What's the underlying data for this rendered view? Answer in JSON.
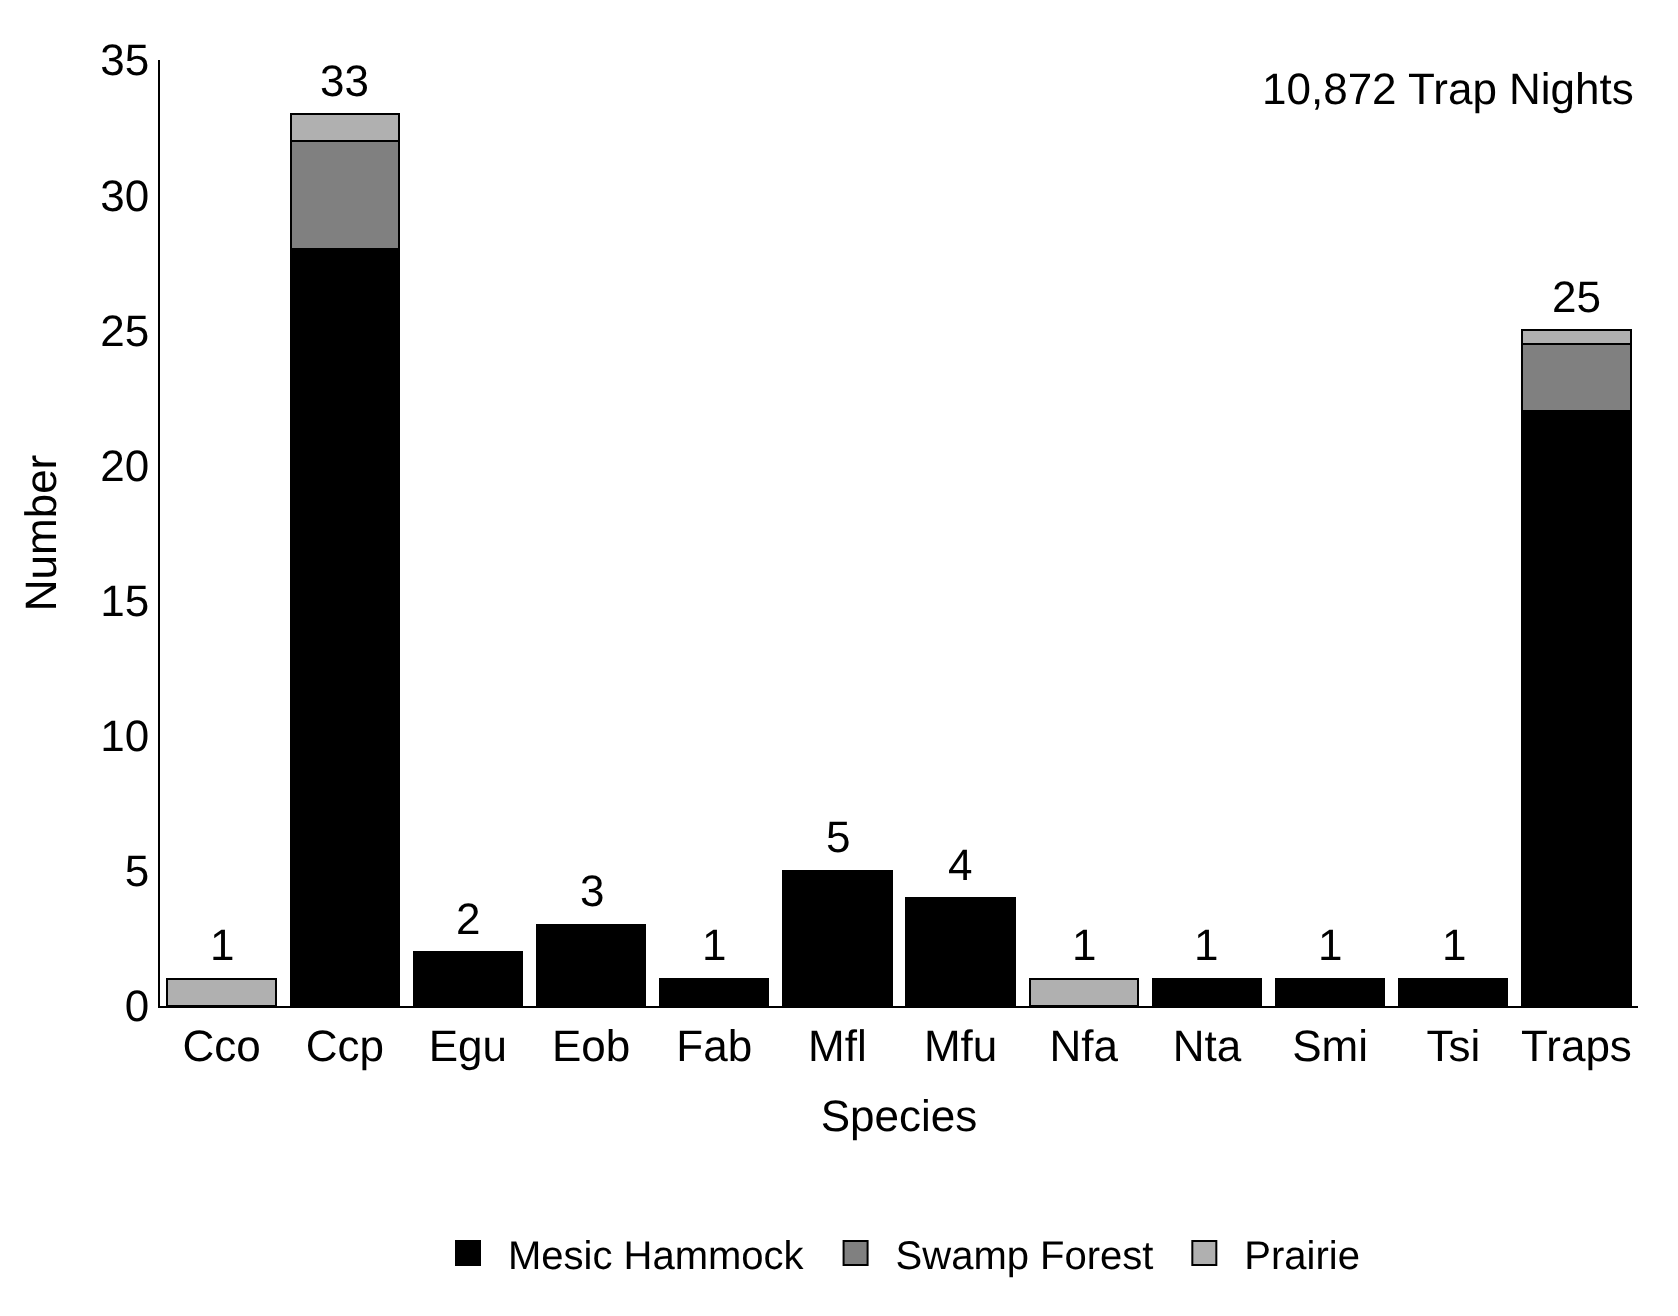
{
  "chart_data": {
    "type": "bar",
    "stacked": true,
    "xlabel": "Species",
    "ylabel": "Number",
    "categories": [
      "Cco",
      "Ccp",
      "Egu",
      "Eob",
      "Fab",
      "Mfl",
      "Mfu",
      "Nfa",
      "Nta",
      "Smi",
      "Tsi",
      "Traps"
    ],
    "series": [
      {
        "name": "Mesic Hammock",
        "color": "#000000",
        "values": [
          null,
          28,
          2,
          3,
          1,
          5,
          4,
          null,
          1,
          1,
          1,
          22
        ]
      },
      {
        "name": "Swamp Forest",
        "color": "#808080",
        "values": [
          null,
          4,
          null,
          null,
          null,
          null,
          null,
          null,
          null,
          null,
          null,
          2.5
        ]
      },
      {
        "name": "Prairie",
        "color": "#b0b0b0",
        "values": [
          1,
          1,
          null,
          null,
          null,
          null,
          null,
          1,
          null,
          null,
          null,
          0.5
        ]
      }
    ],
    "totals": [
      "1",
      "33",
      "2",
      "3",
      "1",
      "5",
      "4",
      "1",
      "1",
      "1",
      "1",
      "25"
    ],
    "ylim": [
      0,
      35
    ],
    "yticks": [
      0,
      5,
      10,
      15,
      20,
      25,
      30,
      35
    ],
    "legend": "bottom",
    "annotations": [
      "10,872 Trap Nights"
    ]
  }
}
